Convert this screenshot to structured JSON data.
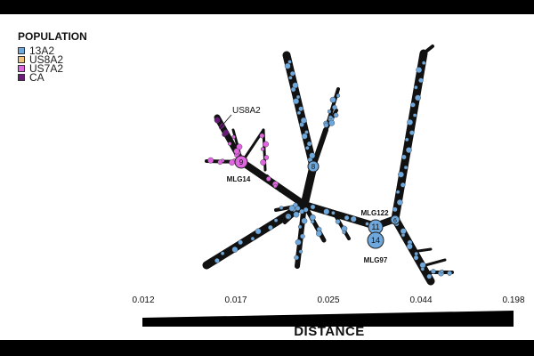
{
  "legend": {
    "title": "POPULATION",
    "items": [
      {
        "label": "13A2",
        "color": "#6fa8dc"
      },
      {
        "label": "US8A2",
        "color": "#f0c27b"
      },
      {
        "label": "US7A2",
        "color": "#e066e0"
      },
      {
        "label": "CA",
        "color": "#6a1b7a"
      }
    ]
  },
  "annotations": {
    "us8a2": "US8A2",
    "mlg14": "MLG14",
    "mlg122": "MLG122",
    "mlg97": "MLG97"
  },
  "node_counts": {
    "n9": "9",
    "n8": "8",
    "n11": "11",
    "n14": "14",
    "n6": "6"
  },
  "distance_scale": {
    "title": "DISTANCE",
    "ticks": [
      "0.012",
      "0.017",
      "0.025",
      "0.044",
      "0.198"
    ]
  },
  "colors": {
    "edge": "#111111",
    "node_13a2": "#6fa8dc",
    "node_us7a2": "#e066e0",
    "node_ca": "#6a1b7a"
  }
}
